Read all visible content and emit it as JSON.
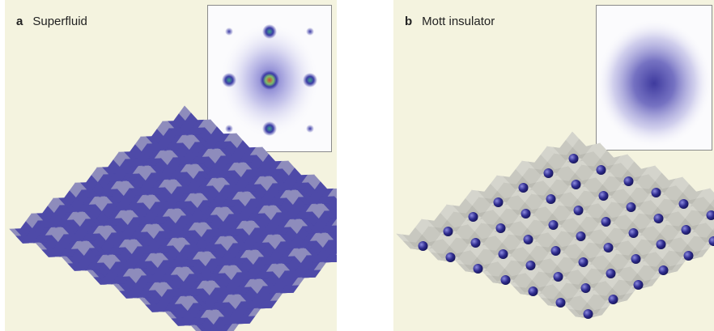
{
  "panels": {
    "a": {
      "letter": "a",
      "title": "Superfluid"
    },
    "b": {
      "letter": "b",
      "title": "Mott insulator"
    }
  },
  "colors": {
    "panel_bg": "#f4f3df",
    "lattice_surface": "#d9d9d1",
    "superfluid_blue": "#4e4aa8",
    "atom_blue": "#2f2c8f"
  }
}
